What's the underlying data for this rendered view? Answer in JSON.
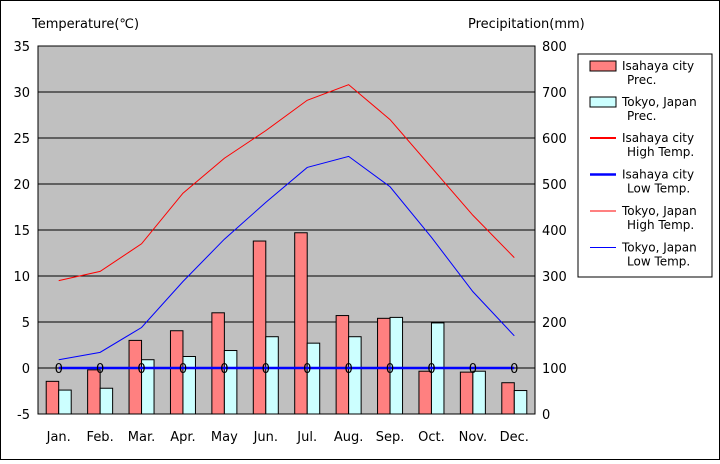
{
  "chart_data": {
    "type": "bar",
    "categories": [
      "Jan.",
      "Feb.",
      "Mar.",
      "Apr.",
      "May",
      "Jun.",
      "Jul.",
      "Aug.",
      "Sep.",
      "Oct.",
      "Nov.",
      "Dec."
    ],
    "ylabel_left": "Temperature(℃)",
    "ylabel_right": "Precipitation(mm)",
    "ylim_left": [
      -5,
      35
    ],
    "ylim_right": [
      0,
      800
    ],
    "yticks_left": [
      "35",
      "30",
      "25",
      "20",
      "15",
      "10",
      "5",
      "0",
      "-5"
    ],
    "yticks_right": [
      "800",
      "700",
      "600",
      "500",
      "400",
      "300",
      "200",
      "100",
      "0"
    ],
    "grid": true,
    "plot_background": "#c0c0c0",
    "legend_position": "right",
    "bar_series": [
      {
        "name": "Isahaya city Prec.",
        "legend_lines": [
          "Isahaya city",
          "Prec."
        ],
        "color": "#ff8080",
        "axis": "right",
        "values": [
          71,
          96,
          160,
          181,
          220,
          376,
          394,
          214,
          208,
          93,
          91,
          68
        ]
      },
      {
        "name": "Tokyo, Japan Prec.",
        "legend_lines": [
          "Tokyo, Japan",
          "Prec."
        ],
        "color": "#ccffff",
        "axis": "right",
        "values": [
          52,
          56,
          118,
          125,
          138,
          168,
          154,
          168,
          210,
          198,
          93,
          51
        ]
      }
    ],
    "line_series": [
      {
        "name": "Isahaya city High Temp.",
        "legend_lines": [
          "Isahaya city",
          "High Temp."
        ],
        "color": "#ff0000",
        "width": 2,
        "axis": "left",
        "values": [
          0,
          0,
          0,
          0,
          0,
          0,
          0,
          0,
          0,
          0,
          0,
          0
        ],
        "point_labels": [
          "0",
          "0",
          "0",
          "0",
          "0",
          "0",
          "0",
          "0",
          "0",
          "0",
          "0",
          "0"
        ]
      },
      {
        "name": "Isahaya city Low Temp.",
        "legend_lines": [
          "Isahaya city",
          "Low Temp."
        ],
        "color": "#0000ff",
        "width": 2.5,
        "axis": "left",
        "values": [
          0,
          0,
          0,
          0,
          0,
          0,
          0,
          0,
          0,
          0,
          0,
          0
        ]
      },
      {
        "name": "Tokyo, Japan High Temp.",
        "legend_lines": [
          "Tokyo, Japan",
          "High Temp."
        ],
        "color": "#ff0000",
        "width": 1,
        "axis": "left",
        "values": [
          9.5,
          10.5,
          13.5,
          19,
          22.8,
          25.8,
          29.1,
          30.8,
          27,
          21.8,
          16.6,
          12
        ]
      },
      {
        "name": "Tokyo, Japan Low Temp.",
        "legend_lines": [
          "Tokyo, Japan",
          "Low Temp."
        ],
        "color": "#0000ff",
        "width": 1,
        "axis": "left",
        "values": [
          0.9,
          1.7,
          4.4,
          9.4,
          14,
          18,
          21.8,
          23,
          19.7,
          14.2,
          8.3,
          3.5
        ]
      }
    ]
  }
}
